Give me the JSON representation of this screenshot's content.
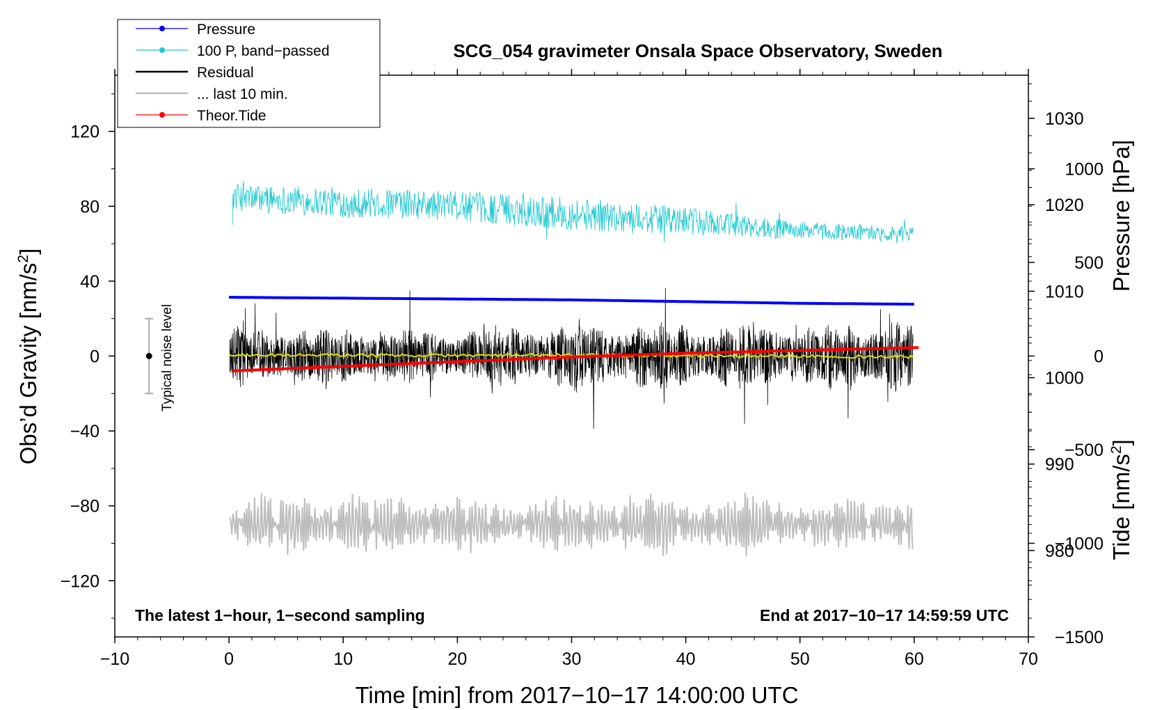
{
  "chart_data": {
    "type": "line",
    "title": "SCG_054 gravimeter Onsala Space Observatory, Sweden",
    "xlabel": "Time [min] from 2017−10−17 14:00:00 UTC",
    "ylabel": "Obs’d Gravity [nm/s",
    "ylabel_sup": "2",
    "ylabel_close": "]",
    "y2label_pressure": "Pressure [hPa]",
    "y2label_tide": "Tide [nm/s",
    "y2label_tide_sup": "2",
    "y2label_tide_close": "]",
    "xlim": [
      -10,
      70
    ],
    "ylim": [
      -150,
      150
    ],
    "x_ticks": [
      -10,
      0,
      10,
      20,
      30,
      40,
      50,
      60,
      70
    ],
    "x_tick_labels": [
      "−10",
      "0",
      "10",
      "20",
      "30",
      "40",
      "50",
      "60",
      "70"
    ],
    "y_ticks": [
      -120,
      -80,
      -40,
      0,
      40,
      80,
      120
    ],
    "y_tick_labels": [
      "−120",
      "−80",
      "−40",
      "0",
      "40",
      "80",
      "120"
    ],
    "pressure_axis": {
      "range": [
        970,
        1035
      ],
      "ticks": [
        980,
        990,
        1000,
        1010,
        1020,
        1030
      ],
      "tick_labels": [
        "980",
        "990",
        "1000",
        "1010",
        "1020",
        "1030"
      ]
    },
    "tide_axis": {
      "range": [
        -1500,
        1500
      ],
      "ticks": [
        -1500,
        -1000,
        -500,
        0,
        500,
        1000
      ],
      "tick_labels": [
        "−1500",
        "−1000",
        "−500",
        "0",
        "500",
        "1000"
      ]
    },
    "legend": {
      "position": "top-left",
      "entries": [
        {
          "label": "Pressure",
          "color": "#0000ff",
          "marker": true
        },
        {
          "label": "100 P, band−passed",
          "color": "#20c8d0",
          "marker": true
        },
        {
          "label": "Residual",
          "color": "#000000",
          "marker": false
        },
        {
          "label": "... last 10 min.",
          "color": "#bebebe",
          "marker": false
        },
        {
          "label": "Theor.Tide",
          "color": "#ff0000",
          "marker": true
        }
      ]
    },
    "noise_indicator": {
      "label": "Typical noise level",
      "x": -7,
      "center": 0,
      "half_range": 20
    },
    "series": [
      {
        "name": "Pressure",
        "axis": "pressure",
        "color": "#0000ff",
        "x": [
          0,
          10,
          20,
          30,
          40,
          50,
          60
        ],
        "y": [
          1009.3,
          1009.2,
          1009.1,
          1009.0,
          1008.8,
          1008.6,
          1008.5
        ]
      },
      {
        "name": "100 P, band-passed",
        "axis": "gravity",
        "color": "#20c8d0",
        "x": [
          0,
          10,
          20,
          30,
          40,
          50,
          60
        ],
        "y": [
          85,
          82,
          80,
          76,
          72,
          67,
          65
        ],
        "noise_amplitude": [
          9,
          10,
          10,
          11,
          9,
          6,
          5
        ]
      },
      {
        "name": "Residual",
        "axis": "gravity",
        "color": "#000000",
        "x": [
          0,
          10,
          20,
          30,
          40,
          50,
          60
        ],
        "y": [
          0,
          0,
          0,
          0,
          0,
          0,
          0
        ],
        "noise_amplitude": [
          14,
          14,
          13,
          17,
          16,
          15,
          18
        ]
      },
      {
        "name": "Residual (smoothed)",
        "axis": "gravity",
        "color": "#e0e000",
        "x": [
          0,
          10,
          20,
          30,
          40,
          50,
          60
        ],
        "y": [
          0.5,
          0.5,
          0.3,
          0.5,
          0.2,
          0,
          -0.5
        ]
      },
      {
        "name": "... last 10 min.",
        "axis": "gravity",
        "color": "#bebebe",
        "x": [
          0,
          60
        ],
        "y": [
          -90,
          -90
        ],
        "noise_amplitude": 12
      },
      {
        "name": "Theor.Tide",
        "axis": "tide",
        "color": "#ff0000",
        "x": [
          0,
          10,
          20,
          30,
          40,
          50,
          60
        ],
        "y": [
          -80,
          -55,
          -30,
          -5,
          15,
          30,
          45
        ]
      }
    ],
    "annotations": [
      {
        "text": "The latest 1−hour, 1−second sampling",
        "position": "bottom-left"
      },
      {
        "text": "End at 2017−10−17 14:59:59 UTC",
        "position": "bottom-right"
      }
    ]
  }
}
